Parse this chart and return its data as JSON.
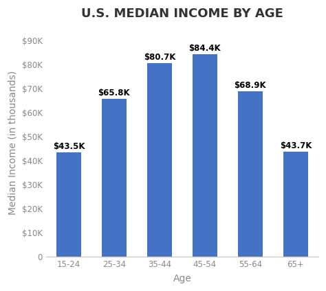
{
  "title": "U.S. MEDIAN INCOME BY AGE",
  "categories": [
    "15-24",
    "25-34",
    "35-44",
    "45-54",
    "55-64",
    "65+"
  ],
  "values": [
    43500,
    65800,
    80700,
    84400,
    68900,
    43700
  ],
  "labels": [
    "$43.5K",
    "$65.8K",
    "$80.7K",
    "$84.4K",
    "$68.9K",
    "$43.7K"
  ],
  "bar_color": "#4472C4",
  "xlabel": "Age",
  "ylabel": "Median Income (in thousands)",
  "ylim": [
    0,
    95000
  ],
  "yticks": [
    0,
    10000,
    20000,
    30000,
    40000,
    50000,
    60000,
    70000,
    80000,
    90000
  ],
  "ytick_labels": [
    "0",
    "$10K",
    "$20K",
    "$30K",
    "$40K",
    "$50K",
    "$60K",
    "$70K",
    "$80K",
    "$90K"
  ],
  "background_color": "#ffffff",
  "title_fontsize": 13,
  "title_color": "#333333",
  "label_fontsize": 8.5,
  "axis_label_fontsize": 10,
  "tick_fontsize": 8.5,
  "tick_color": "#888888",
  "spine_color": "#cccccc",
  "bar_width": 0.55
}
